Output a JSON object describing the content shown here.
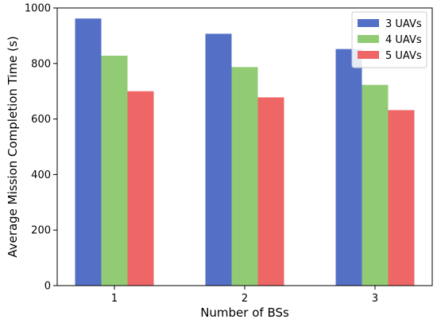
{
  "chart_data": {
    "type": "bar",
    "title": "",
    "xlabel": "Number of BSs",
    "ylabel": "Average Mission Completion Time (s)",
    "categories": [
      "1",
      "2",
      "3"
    ],
    "series": [
      {
        "name": "3 UAVs",
        "color": "#5470c6",
        "values": [
          962,
          907,
          852
        ]
      },
      {
        "name": "4 UAVs",
        "color": "#91cc75",
        "values": [
          828,
          787,
          723
        ]
      },
      {
        "name": "5 UAVs",
        "color": "#ee6666",
        "values": [
          700,
          678,
          632
        ]
      }
    ],
    "ylim": [
      0,
      1000
    ],
    "yticks": [
      0,
      200,
      400,
      600,
      800,
      1000
    ],
    "grid": false,
    "legend_position": "top-right"
  }
}
